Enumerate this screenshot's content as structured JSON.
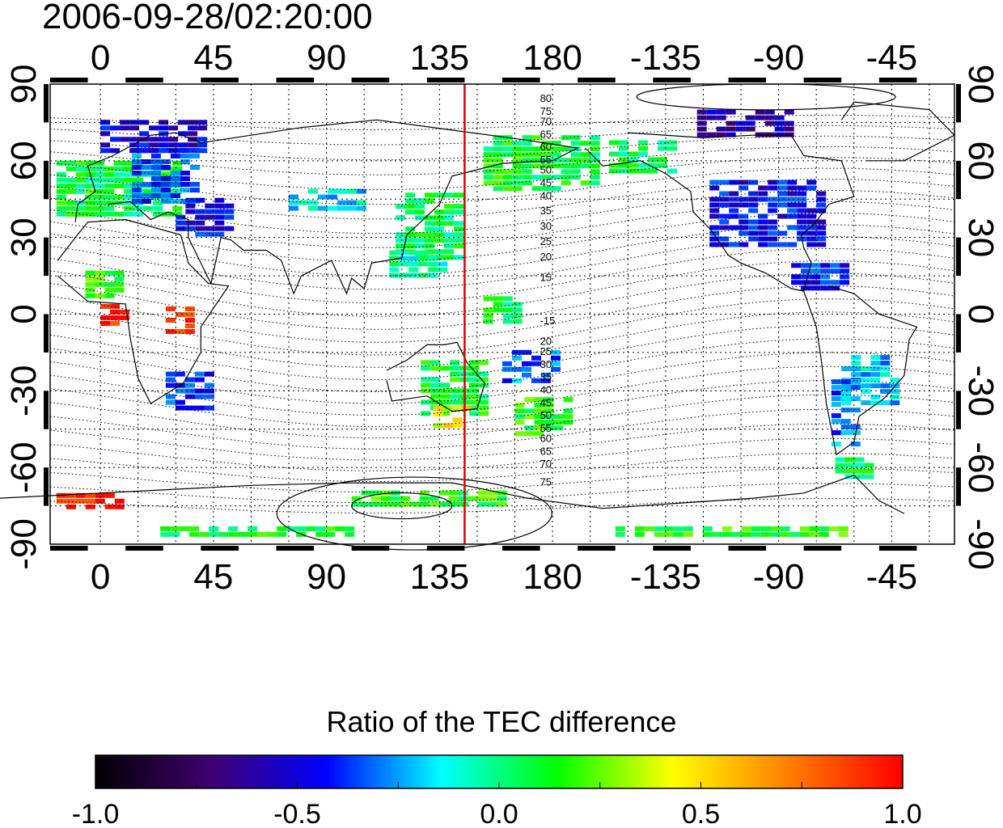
{
  "title": "2006-09-28/02:20:00",
  "colors": {
    "ocean": "#ffffff",
    "frame": "#000000",
    "meridian_marker": "#e00000"
  },
  "chart_data": {
    "type": "heatmap",
    "projection": "equirectangular",
    "lon_range": [
      -20,
      340
    ],
    "lat_range": [
      -90,
      90
    ],
    "x_ticks": [
      "0",
      "45",
      "90",
      "135",
      "180",
      "-135",
      "-90",
      "-45"
    ],
    "x_tick_lon": [
      0,
      45,
      90,
      135,
      180,
      225,
      270,
      315
    ],
    "y_ticks": [
      "90",
      "60",
      "30",
      "0",
      "-30",
      "-60",
      "-90"
    ],
    "y_tick_lat": [
      90,
      60,
      30,
      0,
      -30,
      -60,
      -90
    ],
    "marker_lon": 145,
    "contour_labels": [
      {
        "text": "80",
        "lon": 175,
        "lat": 83
      },
      {
        "text": "75",
        "lon": 175,
        "lat": 78
      },
      {
        "text": "70",
        "lon": 175,
        "lat": 74
      },
      {
        "text": "65",
        "lon": 175,
        "lat": 69
      },
      {
        "text": "60",
        "lon": 175,
        "lat": 64
      },
      {
        "text": "55",
        "lon": 175,
        "lat": 59
      },
      {
        "text": "50",
        "lon": 175,
        "lat": 55
      },
      {
        "text": "45",
        "lon": 175,
        "lat": 50
      },
      {
        "text": "40",
        "lon": 175,
        "lat": 45
      },
      {
        "text": "35",
        "lon": 175,
        "lat": 39
      },
      {
        "text": "30",
        "lon": 175,
        "lat": 33
      },
      {
        "text": "25",
        "lon": 175,
        "lat": 27
      },
      {
        "text": "20",
        "lon": 175,
        "lat": 21
      },
      {
        "text": "15",
        "lon": 175,
        "lat": 13
      },
      {
        "text": "-15",
        "lon": 175,
        "lat": -4
      },
      {
        "text": "20",
        "lon": 175,
        "lat": -12
      },
      {
        "text": "25",
        "lon": 175,
        "lat": -16
      },
      {
        "text": "30",
        "lon": 175,
        "lat": -21
      },
      {
        "text": "35",
        "lon": 175,
        "lat": -26
      },
      {
        "text": "40",
        "lon": 175,
        "lat": -31
      },
      {
        "text": "45",
        "lon": 175,
        "lat": -36
      },
      {
        "text": "50",
        "lon": 175,
        "lat": -41
      },
      {
        "text": "55",
        "lon": 175,
        "lat": -46
      },
      {
        "text": "60",
        "lon": 175,
        "lat": -50
      },
      {
        "text": "65",
        "lon": 175,
        "lat": -55
      },
      {
        "text": "70",
        "lon": 175,
        "lat": -60
      },
      {
        "text": "75",
        "lon": 175,
        "lat": -67
      }
    ],
    "patches": [
      {
        "lon": 10,
        "lat": 50,
        "w": 40,
        "h": 20,
        "v": 0.05
      },
      {
        "lon": 25,
        "lat": 55,
        "w": 25,
        "h": 20,
        "v": -0.35
      },
      {
        "lon": 20,
        "lat": 70,
        "w": 40,
        "h": 12,
        "v": -0.5
      },
      {
        "lon": 40,
        "lat": 38,
        "w": 20,
        "h": 15,
        "v": -0.45
      },
      {
        "lon": -10,
        "lat": 50,
        "w": 15,
        "h": 20,
        "v": 0.1
      },
      {
        "lon": 0,
        "lat": 12,
        "w": 12,
        "h": 10,
        "v": 0.15
      },
      {
        "lon": 35,
        "lat": -30,
        "w": 18,
        "h": 15,
        "v": -0.4
      },
      {
        "lon": 5,
        "lat": 0,
        "w": 10,
        "h": 8,
        "v": 0.95
      },
      {
        "lon": 30,
        "lat": -2,
        "w": 8,
        "h": 10,
        "v": 0.9
      },
      {
        "lon": -5,
        "lat": -73,
        "w": 25,
        "h": 6,
        "v": 0.95
      },
      {
        "lon": 90,
        "lat": 45,
        "w": 30,
        "h": 8,
        "v": -0.15
      },
      {
        "lon": 130,
        "lat": 35,
        "w": 25,
        "h": 25,
        "v": 0.05
      },
      {
        "lon": 125,
        "lat": 20,
        "w": 20,
        "h": 10,
        "v": -0.05
      },
      {
        "lon": 140,
        "lat": -28,
        "w": 25,
        "h": 20,
        "v": 0.1
      },
      {
        "lon": 140,
        "lat": -40,
        "w": 15,
        "h": 8,
        "v": 0.45
      },
      {
        "lon": 175,
        "lat": -40,
        "w": 20,
        "h": 15,
        "v": 0.15
      },
      {
        "lon": 170,
        "lat": -20,
        "w": 20,
        "h": 12,
        "v": -0.3
      },
      {
        "lon": 160,
        "lat": 2,
        "w": 15,
        "h": 10,
        "v": 0.05
      },
      {
        "lon": 175,
        "lat": 60,
        "w": 45,
        "h": 20,
        "v": 0.1
      },
      {
        "lon": 215,
        "lat": 62,
        "w": 25,
        "h": 12,
        "v": 0.05
      },
      {
        "lon": 265,
        "lat": 40,
        "w": 45,
        "h": 25,
        "v": -0.45
      },
      {
        "lon": 255,
        "lat": 75,
        "w": 35,
        "h": 10,
        "v": -0.6
      },
      {
        "lon": 285,
        "lat": 15,
        "w": 20,
        "h": 10,
        "v": -0.4
      },
      {
        "lon": 305,
        "lat": -25,
        "w": 20,
        "h": 18,
        "v": -0.2
      },
      {
        "lon": 295,
        "lat": -38,
        "w": 8,
        "h": 25,
        "v": -0.3
      },
      {
        "lon": 130,
        "lat": -72,
        "w": 60,
        "h": 6,
        "v": 0.15
      },
      {
        "lon": 60,
        "lat": -85,
        "w": 80,
        "h": 4,
        "v": 0.1
      },
      {
        "lon": 250,
        "lat": -85,
        "w": 90,
        "h": 4,
        "v": 0.15
      },
      {
        "lon": 300,
        "lat": -60,
        "w": 15,
        "h": 8,
        "v": 0.05
      }
    ],
    "colorbar": {
      "title": "Ratio of the TEC difference",
      "min": -1.0,
      "max": 1.0,
      "tick_labels": [
        "-1.0",
        "-0.5",
        "0.0",
        "0.5",
        "1.0"
      ],
      "stops": [
        "#000000",
        "#400070",
        "#0000ff",
        "#00ffff",
        "#00ff00",
        "#ffff00",
        "#ff8000",
        "#ff0000"
      ]
    }
  }
}
